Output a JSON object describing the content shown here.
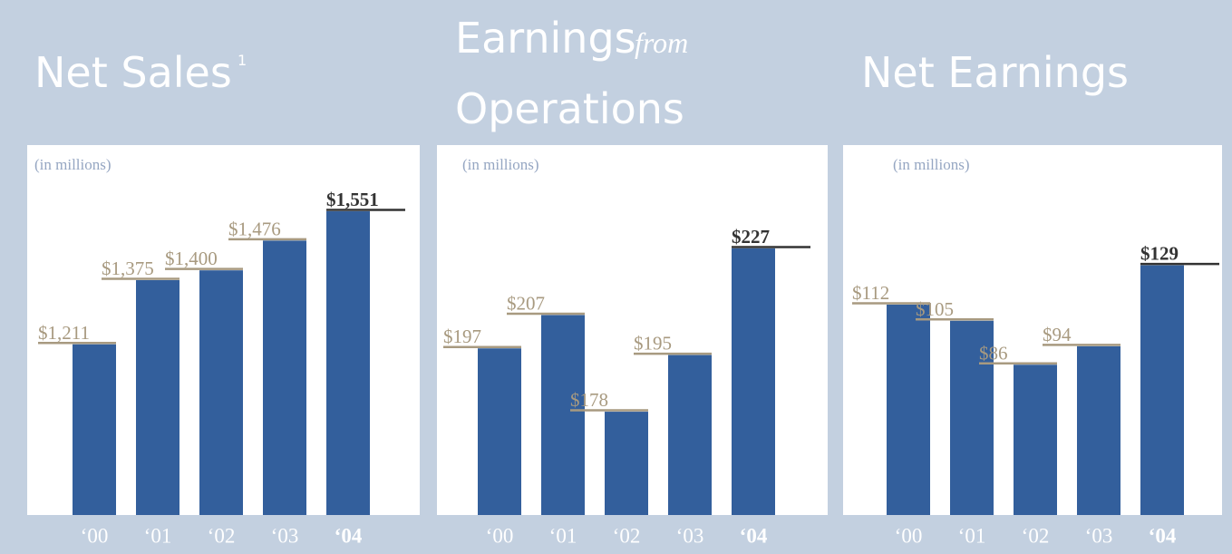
{
  "chart_data": [
    {
      "type": "bar",
      "title": "Net Sales",
      "title_note": "1",
      "subtitle": "(in millions)",
      "categories": [
        "‘00",
        "‘01",
        "‘02",
        "‘03",
        "‘04"
      ],
      "values": [
        1211,
        1375,
        1400,
        1476,
        1551
      ],
      "value_labels": [
        "$1,211",
        "$1,375",
        "$1,400",
        "$1,476",
        "$1,551"
      ],
      "color": "#335f9c",
      "ylim": [
        775,
        1720
      ]
    },
    {
      "type": "bar",
      "title": "Earnings",
      "title_connector": "from",
      "title_line2": "Operations",
      "subtitle": "(in millions)",
      "categories": [
        "‘00",
        "‘01",
        "‘02",
        "‘03",
        "‘04"
      ],
      "values": [
        197,
        207,
        178,
        195,
        227
      ],
      "value_labels": [
        "$197",
        "$207",
        "$178",
        "$195",
        "$227"
      ],
      "color": "#335f9c",
      "ylim": [
        147,
        258
      ]
    },
    {
      "type": "bar",
      "title": "Net Earnings",
      "subtitle": "(in millions)",
      "categories": [
        "‘00",
        "‘01",
        "‘02",
        "‘03",
        "‘04"
      ],
      "values": [
        112,
        105,
        86,
        94,
        129
      ],
      "value_labels": [
        "$112",
        "$105",
        "$86",
        "$94",
        "$129"
      ],
      "color": "#335f9c",
      "ylim": [
        21,
        181
      ]
    }
  ]
}
